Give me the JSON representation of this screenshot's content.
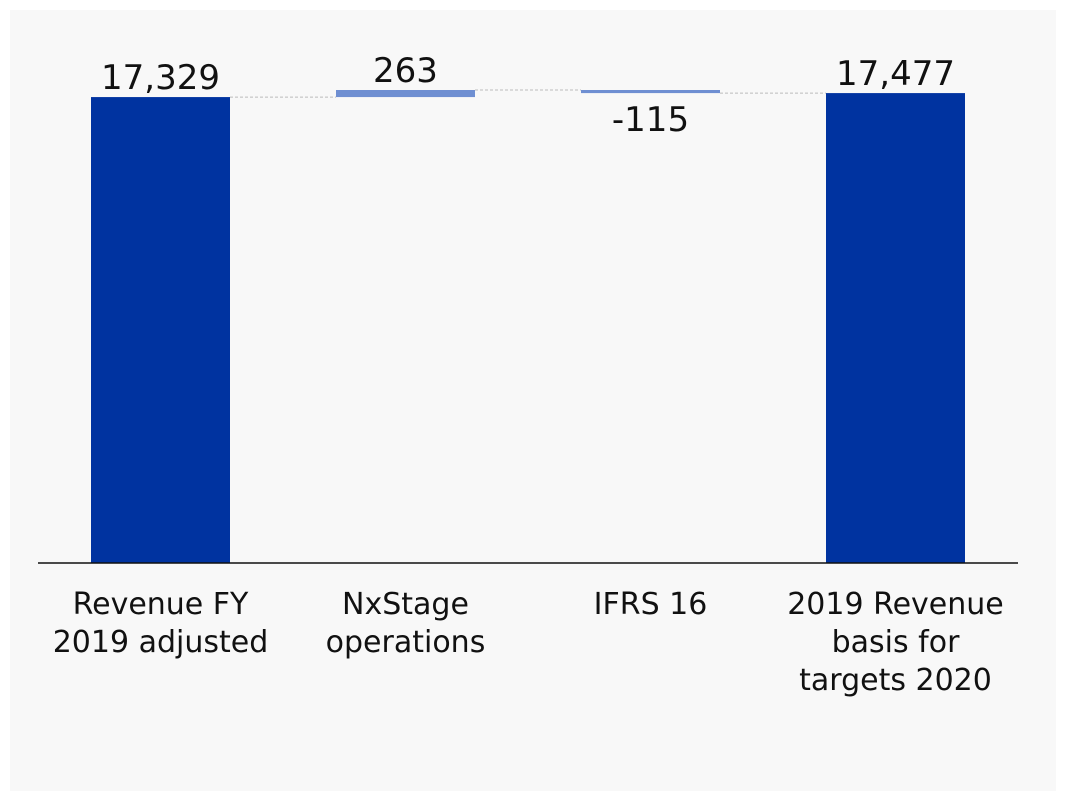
{
  "chart_data": {
    "type": "waterfall",
    "categories": [
      "Revenue FY 2019 adjusted",
      "NxStage operations",
      "IFRS 16",
      "2019 Revenue basis for targets 2020"
    ],
    "values": [
      17329,
      263,
      -115,
      17477
    ],
    "value_labels": [
      "17,329",
      "263",
      "-115",
      "17,477"
    ],
    "colors": [
      "#0033a0",
      "#6f8fd2",
      "#6f8fd2",
      "#0033a0"
    ]
  }
}
